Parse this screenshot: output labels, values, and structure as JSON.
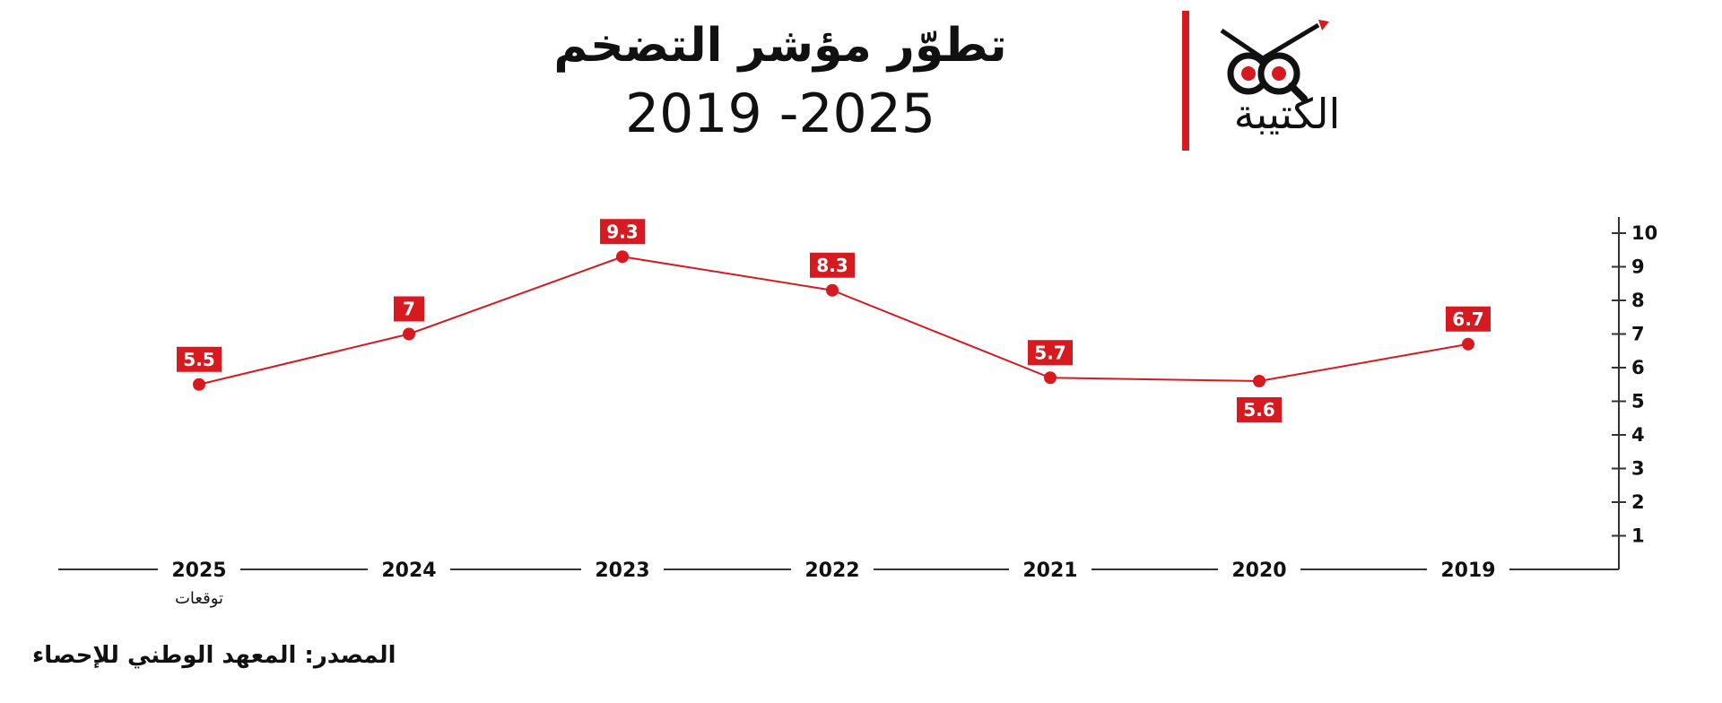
{
  "title": "تطوّر مؤشر التضخم",
  "subtitle": "2019 -2025",
  "logo_text": "الكتيبة",
  "source": "المصدر: المعهد الوطني للإحصاء",
  "colors": {
    "accent": "#d71920",
    "text": "#111111",
    "axis": "#333333"
  },
  "chart_data": {
    "type": "line",
    "categories": [
      "2019",
      "2020",
      "2021",
      "2022",
      "2023",
      "2024",
      "2025"
    ],
    "values": [
      6.7,
      5.6,
      5.7,
      8.3,
      9.3,
      7,
      5.5
    ],
    "data_labels": [
      "6.7",
      "5.6",
      "5.7",
      "8.3",
      "9.3",
      "7",
      "5.5"
    ],
    "y_ticks": [
      "1",
      "2",
      "3",
      "4",
      "5",
      "6",
      "7",
      "8",
      "9",
      "10"
    ],
    "ylim": [
      0,
      10
    ],
    "x_note": {
      "category": "2025",
      "text": "توقعات"
    },
    "y_axis_side": "right",
    "x_order": "right-to-left",
    "grid": false,
    "color": "#d71920"
  }
}
